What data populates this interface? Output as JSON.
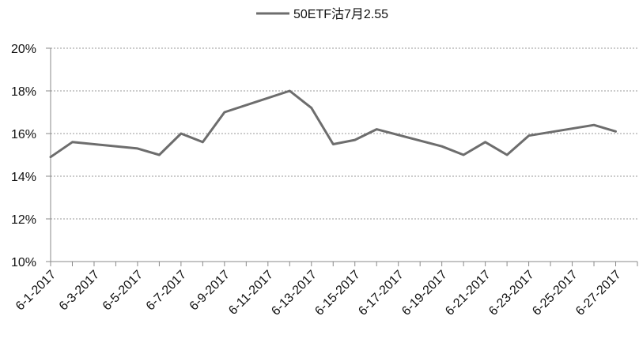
{
  "chart_data": {
    "type": "line",
    "title": "",
    "xlabel": "",
    "ylabel": "",
    "legend_position": "top",
    "grid": "horizontal dotted",
    "y_range": [
      0.1,
      0.2
    ],
    "y_ticks": [
      0.1,
      0.12,
      0.14,
      0.16,
      0.18,
      0.2
    ],
    "y_tick_labels": [
      "10%",
      "12%",
      "14%",
      "16%",
      "18%",
      "20%"
    ],
    "x_tick_labels": [
      "6-1-2017",
      "6-3-2017",
      "6-5-2017",
      "6-7-2017",
      "6-9-2017",
      "6-11-2017",
      "6-13-2017",
      "6-15-2017",
      "6-17-2017",
      "6-19-2017",
      "6-21-2017",
      "6-23-2017",
      "6-25-2017",
      "6-27-2017"
    ],
    "x_range": [
      "2017-06-01",
      "2017-06-28"
    ],
    "series": [
      {
        "name": "50ETF沽7月2.55",
        "color": "#6d6d6d",
        "points": [
          {
            "x": "2017-06-01",
            "y": 0.149
          },
          {
            "x": "2017-06-02",
            "y": 0.156
          },
          {
            "x": "2017-06-05",
            "y": 0.153
          },
          {
            "x": "2017-06-06",
            "y": 0.15
          },
          {
            "x": "2017-06-07",
            "y": 0.16
          },
          {
            "x": "2017-06-08",
            "y": 0.156
          },
          {
            "x": "2017-06-09",
            "y": 0.17
          },
          {
            "x": "2017-06-12",
            "y": 0.18
          },
          {
            "x": "2017-06-13",
            "y": 0.172
          },
          {
            "x": "2017-06-14",
            "y": 0.155
          },
          {
            "x": "2017-06-15",
            "y": 0.157
          },
          {
            "x": "2017-06-16",
            "y": 0.162
          },
          {
            "x": "2017-06-19",
            "y": 0.154
          },
          {
            "x": "2017-06-20",
            "y": 0.15
          },
          {
            "x": "2017-06-21",
            "y": 0.156
          },
          {
            "x": "2017-06-22",
            "y": 0.15
          },
          {
            "x": "2017-06-23",
            "y": 0.159
          },
          {
            "x": "2017-06-26",
            "y": 0.164
          },
          {
            "x": "2017-06-27",
            "y": 0.161
          }
        ]
      }
    ]
  }
}
